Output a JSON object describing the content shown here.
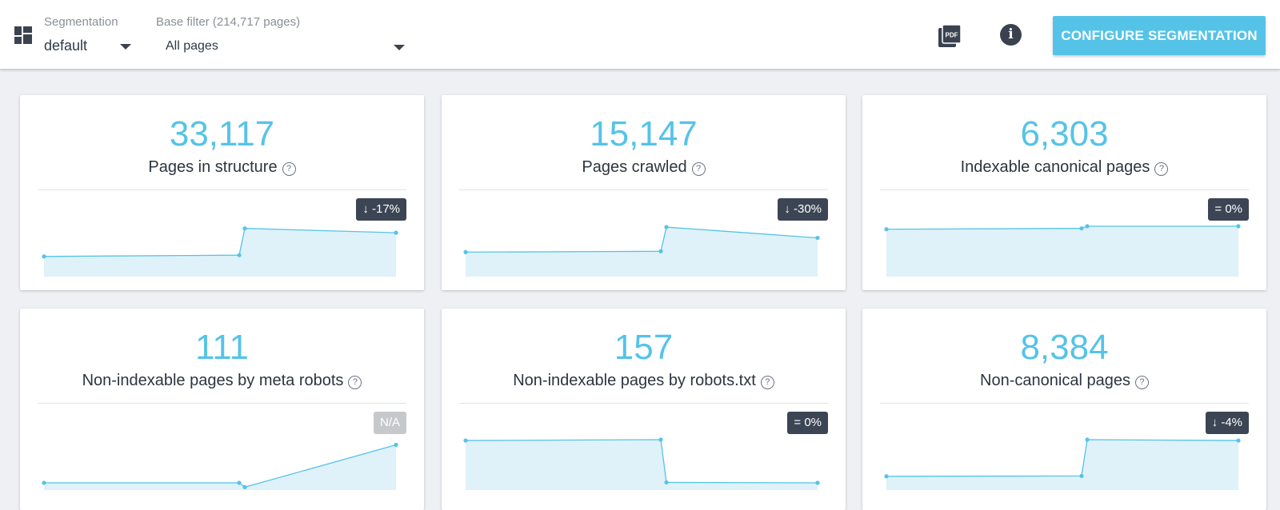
{
  "header": {
    "segmentation_label": "Segmentation",
    "segmentation_value": "default",
    "base_filter_label": "Base filter (214,717 pages)",
    "base_filter_value": "All pages",
    "pdf_icon": "pdf-export-icon",
    "info_icon": "info-icon",
    "info_glyph": "i",
    "configure_button": "CONFIGURE SEGMENTATION"
  },
  "colors": {
    "accent": "#55c3e8",
    "area_fill": "#dff1f9",
    "badge_dark": "#3c4554",
    "badge_na": "#c6c8cb"
  },
  "cards": [
    {
      "value": "33,117",
      "title": "Pages in structure",
      "badge": "↓ -17%",
      "badge_na": false,
      "trend": [
        0.3,
        0.33,
        0.95,
        0.85
      ]
    },
    {
      "value": "15,147",
      "title": "Pages crawled",
      "badge": "↓ -30%",
      "badge_na": false,
      "trend": [
        0.4,
        0.42,
        0.98,
        0.73
      ]
    },
    {
      "value": "6,303",
      "title": "Indexable canonical pages",
      "badge": "= 0%",
      "badge_na": false,
      "trend": [
        0.93,
        0.95,
        1.0,
        1.0
      ]
    },
    {
      "value": "111",
      "title": "Non-indexable pages by meta robots",
      "badge": "N/A",
      "badge_na": true,
      "trend": [
        0.0,
        0.0,
        -0.1,
        0.88
      ]
    },
    {
      "value": "157",
      "title": "Non-indexable pages by robots.txt",
      "badge": "= 0%",
      "badge_na": false,
      "trend": [
        0.98,
        1.0,
        0.01,
        0.0
      ]
    },
    {
      "value": "8,384",
      "title": "Non-canonical pages",
      "badge": "↓ -4%",
      "badge_na": false,
      "trend": [
        0.15,
        0.16,
        1.0,
        0.98
      ]
    }
  ],
  "help_glyph": "?"
}
